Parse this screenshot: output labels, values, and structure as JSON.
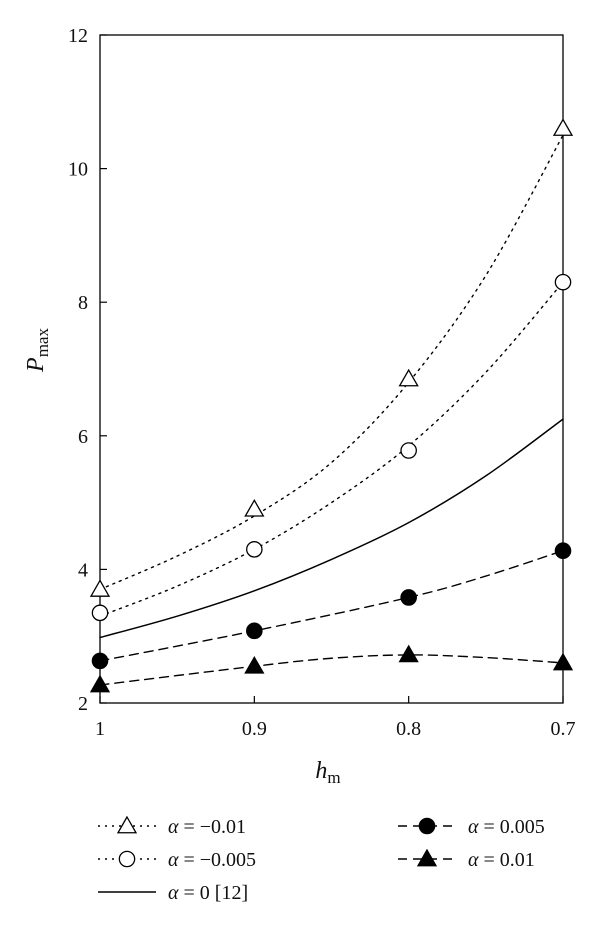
{
  "chart_data": {
    "type": "line",
    "xlabel": "h",
    "xlabel_sub": "m",
    "ylabel": "P",
    "ylabel_sub": "max",
    "x_ticks": [
      "1",
      "0.9",
      "0.8",
      "0.7"
    ],
    "y_ticks": [
      "2",
      "4",
      "6",
      "8",
      "10",
      "12"
    ],
    "xlim": [
      1.0,
      0.7
    ],
    "ylim": [
      2,
      12
    ],
    "grid": false,
    "legend_position": "bottom",
    "x": [
      1.0,
      0.9,
      0.8,
      0.7
    ],
    "series": [
      {
        "name": "α = −0.01",
        "marker": "triangle-open",
        "line_style": "dotted",
        "points": [
          [
            1.0,
            3.7
          ],
          [
            0.9,
            4.9
          ],
          [
            0.8,
            6.85
          ],
          [
            0.7,
            10.6
          ]
        ],
        "curve": [
          [
            1.0,
            3.7
          ],
          [
            0.95,
            4.2
          ],
          [
            0.9,
            4.8
          ],
          [
            0.85,
            5.6
          ],
          [
            0.8,
            6.8
          ],
          [
            0.75,
            8.4
          ],
          [
            0.7,
            10.5
          ]
        ]
      },
      {
        "name": "α = −0.005",
        "marker": "circle-open",
        "line_style": "dotted",
        "points": [
          [
            1.0,
            3.35
          ],
          [
            0.9,
            4.3
          ],
          [
            0.8,
            5.78
          ],
          [
            0.7,
            8.3
          ]
        ],
        "curve": [
          [
            1.0,
            3.3
          ],
          [
            0.95,
            3.75
          ],
          [
            0.9,
            4.3
          ],
          [
            0.85,
            5.0
          ],
          [
            0.8,
            5.85
          ],
          [
            0.75,
            6.95
          ],
          [
            0.7,
            8.3
          ]
        ]
      },
      {
        "name": "α = 0    [12]",
        "marker": "none",
        "line_style": "solid",
        "points": [],
        "curve": [
          [
            1.0,
            2.98
          ],
          [
            0.95,
            3.3
          ],
          [
            0.9,
            3.68
          ],
          [
            0.85,
            4.15
          ],
          [
            0.8,
            4.7
          ],
          [
            0.75,
            5.4
          ],
          [
            0.7,
            6.25
          ]
        ]
      },
      {
        "name": "α = 0.005",
        "marker": "circle-filled",
        "line_style": "dashed",
        "points": [
          [
            1.0,
            2.63
          ],
          [
            0.9,
            3.08
          ],
          [
            0.8,
            3.58
          ],
          [
            0.7,
            4.28
          ]
        ],
        "curve": [
          [
            1.0,
            2.63
          ],
          [
            0.9,
            3.08
          ],
          [
            0.8,
            3.58
          ],
          [
            0.75,
            3.9
          ],
          [
            0.7,
            4.28
          ]
        ]
      },
      {
        "name": "α = 0.01",
        "marker": "triangle-filled",
        "line_style": "dashed",
        "points": [
          [
            1.0,
            2.27
          ],
          [
            0.9,
            2.55
          ],
          [
            0.8,
            2.72
          ],
          [
            0.7,
            2.6
          ]
        ],
        "curve": [
          [
            1.0,
            2.27
          ],
          [
            0.9,
            2.55
          ],
          [
            0.85,
            2.67
          ],
          [
            0.8,
            2.72
          ],
          [
            0.75,
            2.68
          ],
          [
            0.7,
            2.6
          ]
        ]
      }
    ]
  },
  "legend": {
    "left": [
      {
        "alpha": "α",
        "text": " = −0.01",
        "series_index": 0
      },
      {
        "alpha": "α",
        "text": " = −0.005",
        "series_index": 1
      },
      {
        "alpha": "α",
        "text": " = 0    [12]",
        "series_index": 2
      }
    ],
    "right": [
      {
        "alpha": "α",
        "text": " = 0.005",
        "series_index": 3
      },
      {
        "alpha": "α",
        "text": " = 0.01",
        "series_index": 4
      }
    ]
  }
}
